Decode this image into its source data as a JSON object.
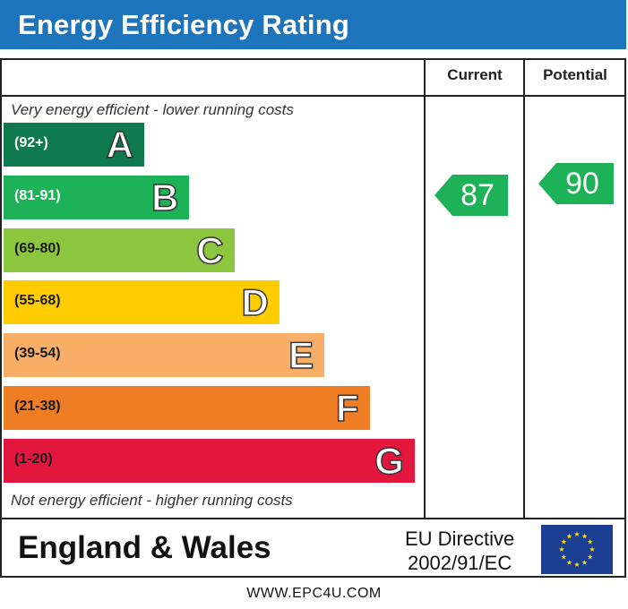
{
  "header": {
    "title": "Energy Efficiency Rating"
  },
  "columns": {
    "current": "Current",
    "potential": "Potential"
  },
  "notes": {
    "top": "Very energy efficient - lower running costs",
    "bottom": "Not energy efficient - higher running costs"
  },
  "footer": {
    "region": "England & Wales",
    "directive_line1": "EU Directive",
    "directive_line2": "2002/91/EC",
    "website": "WWW.EPC4U.COM"
  },
  "colors": {
    "header_bg": "#1e74bb",
    "eu_flag_blue": "#1c3f94",
    "eu_flag_stars": "#ffdd00"
  },
  "chart_data": {
    "type": "bar",
    "title": "Energy Efficiency Rating",
    "bands": [
      {
        "letter": "A",
        "range": "(92+)",
        "min": 92,
        "max": 100,
        "color": "#0f7a4d",
        "range_color": "#ffffff"
      },
      {
        "letter": "B",
        "range": "(81-91)",
        "min": 81,
        "max": 91,
        "color": "#1db257",
        "range_color": "#ffffff"
      },
      {
        "letter": "C",
        "range": "(69-80)",
        "min": 69,
        "max": 80,
        "color": "#8cc63f",
        "range_color": "#1a1a1a"
      },
      {
        "letter": "D",
        "range": "(55-68)",
        "min": 55,
        "max": 68,
        "color": "#ffcc00",
        "range_color": "#1a1a1a"
      },
      {
        "letter": "E",
        "range": "(39-54)",
        "min": 39,
        "max": 54,
        "color": "#f8ae66",
        "range_color": "#1a1a1a"
      },
      {
        "letter": "F",
        "range": "(21-38)",
        "min": 21,
        "max": 38,
        "color": "#ef7d23",
        "range_color": "#1a1a1a"
      },
      {
        "letter": "G",
        "range": "(1-20)",
        "min": 1,
        "max": 20,
        "color": "#e3173e",
        "range_color": "#1a1a1a"
      }
    ],
    "series": [
      {
        "name": "Current",
        "value": 87,
        "band": "B",
        "color": "#1db257"
      },
      {
        "name": "Potential",
        "value": 90,
        "band": "B",
        "color": "#1db257"
      }
    ]
  }
}
